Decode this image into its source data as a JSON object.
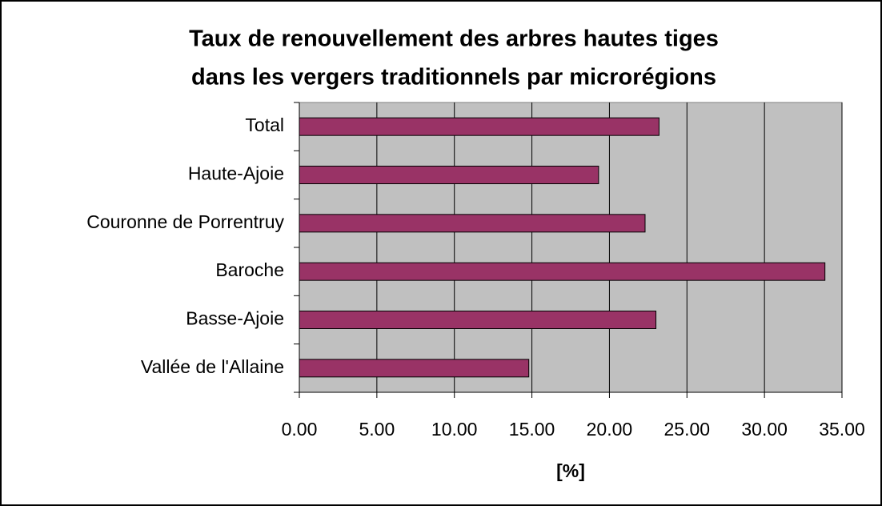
{
  "chart_data": {
    "type": "hbar",
    "title": [
      "Taux de renouvellement des arbres hautes tiges",
      "dans les vergers traditionnels par microrégions"
    ],
    "xlabel": "[%]",
    "categories": [
      "Total",
      "Haute-Ajoie",
      "Couronne de Porrentruy",
      "Baroche",
      "Basse-Ajoie",
      "Vallée de l'Allaine"
    ],
    "values": [
      23.2,
      19.3,
      22.3,
      33.9,
      23.0,
      14.8
    ],
    "color": "#993366",
    "xlim": [
      0,
      35
    ],
    "xticks": [
      {
        "value": 0,
        "label": "0.00"
      },
      {
        "value": 5,
        "label": "5.00"
      },
      {
        "value": 10,
        "label": "10.00"
      },
      {
        "value": 15,
        "label": "15.00"
      },
      {
        "value": 20,
        "label": "20.00"
      },
      {
        "value": 25,
        "label": "25.00"
      },
      {
        "value": 30,
        "label": "30.00"
      },
      {
        "value": 35,
        "label": "35.00"
      }
    ],
    "grid": true
  }
}
